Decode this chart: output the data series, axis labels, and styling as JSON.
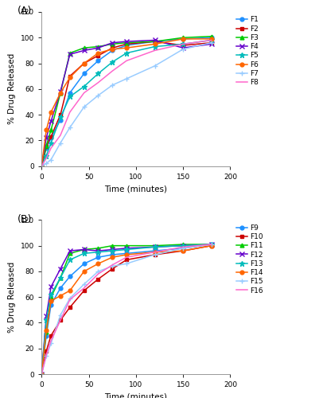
{
  "panel_A": {
    "label": "(A)",
    "series": [
      {
        "name": "F1",
        "color": "#1E90FF",
        "marker": "o",
        "x": [
          0,
          5,
          10,
          20,
          30,
          45,
          60,
          75,
          90,
          120,
          150,
          180
        ],
        "y": [
          0,
          14,
          22,
          36,
          57,
          72,
          82,
          90,
          94,
          97,
          99,
          100
        ]
      },
      {
        "name": "F2",
        "color": "#CC0000",
        "marker": "s",
        "x": [
          0,
          5,
          10,
          20,
          30,
          45,
          60,
          75,
          90,
          120,
          150,
          180
        ],
        "y": [
          0,
          15,
          23,
          40,
          70,
          80,
          86,
          92,
          95,
          97,
          94,
          96
        ]
      },
      {
        "name": "F3",
        "color": "#00CC00",
        "marker": "^",
        "x": [
          0,
          5,
          10,
          20,
          30,
          45,
          60,
          75,
          90,
          120,
          150,
          180
        ],
        "y": [
          0,
          16,
          28,
          57,
          88,
          92,
          93,
          95,
          96,
          97,
          100,
          101
        ]
      },
      {
        "name": "F4",
        "color": "#6600CC",
        "marker": "x",
        "x": [
          0,
          5,
          10,
          20,
          30,
          45,
          60,
          75,
          90,
          120,
          150,
          180
        ],
        "y": [
          0,
          22,
          35,
          58,
          87,
          90,
          92,
          96,
          97,
          98,
          92,
          95
        ]
      },
      {
        "name": "F5",
        "color": "#00BBBB",
        "marker": "*",
        "x": [
          0,
          5,
          10,
          20,
          30,
          45,
          60,
          75,
          90,
          120,
          150,
          180
        ],
        "y": [
          0,
          8,
          18,
          38,
          54,
          62,
          72,
          81,
          88,
          93,
          95,
          98
        ]
      },
      {
        "name": "F6",
        "color": "#FF6600",
        "marker": "o",
        "x": [
          0,
          5,
          10,
          20,
          30,
          45,
          60,
          75,
          90,
          120,
          150,
          180
        ],
        "y": [
          0,
          28,
          42,
          57,
          69,
          80,
          88,
          91,
          92,
          95,
          99,
          99
        ]
      },
      {
        "name": "F7",
        "color": "#99CCFF",
        "marker": "+",
        "x": [
          0,
          5,
          10,
          20,
          30,
          45,
          60,
          75,
          90,
          120,
          150,
          180
        ],
        "y": [
          0,
          2,
          5,
          18,
          30,
          46,
          55,
          63,
          68,
          78,
          91,
          96
        ]
      },
      {
        "name": "F8",
        "color": "#FF66CC",
        "marker": "None",
        "x": [
          0,
          5,
          10,
          20,
          30,
          45,
          60,
          75,
          90,
          120,
          150,
          180
        ],
        "y": [
          0,
          6,
          14,
          24,
          42,
          57,
          65,
          74,
          82,
          90,
          95,
          98
        ]
      }
    ]
  },
  "panel_B": {
    "label": "(B)",
    "series": [
      {
        "name": "F9",
        "color": "#1E90FF",
        "marker": "o",
        "x": [
          0,
          5,
          10,
          20,
          30,
          45,
          60,
          75,
          90,
          120,
          150,
          180
        ],
        "y": [
          0,
          30,
          54,
          67,
          76,
          86,
          91,
          93,
          94,
          96,
          98,
          101
        ]
      },
      {
        "name": "F10",
        "color": "#CC0000",
        "marker": "s",
        "x": [
          0,
          5,
          10,
          20,
          30,
          45,
          60,
          75,
          90,
          120,
          150,
          180
        ],
        "y": [
          0,
          18,
          30,
          42,
          52,
          65,
          74,
          82,
          89,
          93,
          96,
          100
        ]
      },
      {
        "name": "F11",
        "color": "#00CC00",
        "marker": "^",
        "x": [
          0,
          5,
          10,
          20,
          30,
          45,
          60,
          75,
          90,
          120,
          150,
          180
        ],
        "y": [
          0,
          33,
          60,
          75,
          94,
          97,
          98,
          100,
          100,
          100,
          101,
          101
        ]
      },
      {
        "name": "F12",
        "color": "#6600CC",
        "marker": "x",
        "x": [
          0,
          5,
          10,
          20,
          30,
          45,
          60,
          75,
          90,
          120,
          150,
          180
        ],
        "y": [
          0,
          45,
          68,
          82,
          96,
          97,
          96,
          97,
          98,
          99,
          100,
          101
        ]
      },
      {
        "name": "F13",
        "color": "#00BBBB",
        "marker": "*",
        "x": [
          0,
          5,
          10,
          20,
          30,
          45,
          60,
          75,
          90,
          120,
          150,
          180
        ],
        "y": [
          0,
          42,
          62,
          75,
          89,
          94,
          95,
          96,
          97,
          99,
          100,
          101
        ]
      },
      {
        "name": "F14",
        "color": "#FF6600",
        "marker": "o",
        "x": [
          0,
          5,
          10,
          20,
          30,
          45,
          60,
          75,
          90,
          120,
          150,
          180
        ],
        "y": [
          0,
          34,
          57,
          61,
          65,
          80,
          86,
          91,
          93,
          95,
          96,
          100
        ]
      },
      {
        "name": "F15",
        "color": "#99CCFF",
        "marker": "+",
        "x": [
          0,
          5,
          10,
          20,
          30,
          45,
          60,
          75,
          90,
          120,
          150,
          180
        ],
        "y": [
          0,
          14,
          24,
          46,
          59,
          70,
          80,
          84,
          86,
          93,
          98,
          101
        ]
      },
      {
        "name": "F16",
        "color": "#FF66CC",
        "marker": "None",
        "x": [
          0,
          5,
          10,
          20,
          30,
          45,
          60,
          75,
          90,
          120,
          150,
          180
        ],
        "y": [
          0,
          15,
          26,
          42,
          58,
          67,
          78,
          85,
          91,
          95,
          99,
          101
        ]
      }
    ]
  },
  "xlabel": "Time (minutes)",
  "ylabel": "% Drug Released",
  "xlim": [
    0,
    200
  ],
  "ylim": [
    0,
    120
  ],
  "yticks": [
    0,
    20,
    40,
    60,
    80,
    100,
    120
  ],
  "xticks": [
    0,
    50,
    100,
    150,
    200
  ],
  "background_color": "#ffffff",
  "legend_fontsize": 6.5,
  "axis_fontsize": 7.5,
  "tick_fontsize": 6.5,
  "label_fontsize": 9
}
